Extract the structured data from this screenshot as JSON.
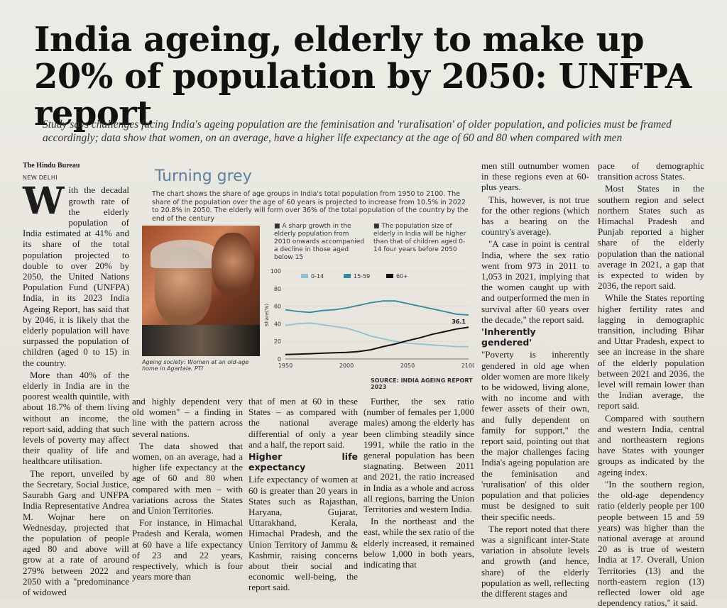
{
  "headline": "India ageing, elderly to make up 20% of population by 2050: UNFPA report",
  "deck": "Study says challenges facing India's ageing population are the feminisation and 'ruralisation' of older population, and policies must be framed accordingly; data show that women, on an average, have a higher life expectancy at the age of 60 and 80 when compared with men",
  "byline": "The Hindu Bureau",
  "dateline": "NEW DELHI",
  "col1": {
    "dropcap": "W",
    "p1": "ith the decadal growth rate of the elderly population of India estimated at 41% and its share of the total population projected to double to over 20% by 2050, the United Nations Population Fund (UNFPA) India, in its 2023 India Ageing Report, has said that by 2046, it is likely that the elderly population will have surpassed the population of children (aged 0 to 15) in the country.",
    "p2": "More than 40% of the elderly in India are in the poorest wealth quintile, with about 18.7% of them living without an income, the report said, adding that such levels of poverty may affect their quality of life and healthcare utilisation.",
    "p3": "The report, unveiled by the Secretary, Social Justice, Saurabh Garg and UNFPA India Representative Andrea M. Wojnar here on Wednesday, projected that the population of people aged 80 and above will grow at a rate of around 279% between 2022 and 2050 with a \"predominance of widowed"
  },
  "col2": {
    "p1": "and highly dependent very old women\" – a finding in line with the pattern across several nations.",
    "p2": "The data showed that women, on an average, had a higher life expectancy at the age of 60 and 80 when compared with men – with variations across the States and Union Territories.",
    "p3": "For instance, in Himachal Pradesh and Kerala, women at 60 have a life expectancy of 23 and 22 years, respectively, which is four years more than"
  },
  "col3": {
    "p1": "that of men at 60 in these States – as compared with the national average differential of only a year and a half, the report said.",
    "subhead": "Higher life expectancy",
    "p2": "Life expectancy of women at 60 is greater than 20 years in States such as Rajasthan, Haryana, Gujarat, Uttarakhand, Kerala, Himachal Pradesh, and the Union Territory of Jammu & Kashmir, raising concerns about their social and economic well-being, the report said."
  },
  "col4": {
    "p1": "Further, the sex ratio (number of females per 1,000 males) among the elderly has been climbing steadily since 1991, while the ratio in the general population has been stagnating. Between 2011 and 2021, the ratio increased in India as a whole and across all regions, barring the Union Territories and western India.",
    "p2": "In the northeast and the east, while the sex ratio of the elderly increased, it remained below 1,000 in both years, indicating that"
  },
  "col5": {
    "p1": "men still outnumber women in these regions even at 60-plus years.",
    "p2": "This, however, is not true for the other regions (which has a bearing on the country's average).",
    "p3": "\"A case in point is central India, where the sex ratio went from 973 in 2011 to 1,053 in 2021, implying that the women caught up with and outperformed the men in survival after 60 years over the decade,\" the report said.",
    "subhead": "'Inherently gendered'",
    "p4": "\"Poverty is inherently gendered in old age when older women are more likely to be widowed, living alone, with no income and with fewer assets of their own, and fully dependent on family for support,\" the report said, pointing out that the major challenges facing India's ageing population are the feminisation and 'ruralisation' of this older population and that policies must be designed to suit their specific needs.",
    "p5": "The report noted that there was a significant inter-State variation in absolute levels and growth (and hence, share) of the elderly population as well, reflecting the different stages and"
  },
  "col6": {
    "p1": "pace of demographic transition across States.",
    "p2": "Most States in the southern region and select northern States such as Himachal Pradesh and Punjab reported a higher share of the elderly population than the national average in 2021, a gap that is expected to widen by 2036, the report said.",
    "p3": "While the States reporting higher fertility rates and lagging in demographic transition, including Bihar and Uttar Pradesh, expect to see an increase in the share of the elderly population between 2021 and 2036, the level will remain lower than the Indian average, the report said.",
    "p4": "Compared with southern and western India, central and northeastern regions have States with younger groups as indicated by the ageing index.",
    "p5": "\"In the southern region, the old-age dependency ratio (elderly people per 100 people between 15 and 59 years) was higher than the national average at around 20 as is true of western India at 17. Overall, Union Territories (13) and the north-eastern region (13) reflected lower old age dependency ratios,\" it said."
  },
  "graphic": {
    "title": "Turning grey",
    "description": "The chart shows the share of age groups in India's total population from 1950 to 2100. The share of the population over the age of 60 years is projected to increase from 10.5% in 2022 to 20.8% in 2050. The elderly will form over 36% of the total population of the country by the end of the century",
    "note1": "A sharp growth in the elderly population from 2010 onwards accompanied a decline in those aged below 15",
    "note2": "The population size of elderly in India will be higher than that of children aged 0-14 four years before 2050",
    "caption": "Ageing society: Women at an old-age home in Agartala. PTI",
    "source": "SOURCE: INDIA AGEING REPORT 2023"
  },
  "chart_data": {
    "type": "line",
    "title": "Turning grey",
    "xlabel": "",
    "ylabel": "Share(%)",
    "xlim": [
      1950,
      2100
    ],
    "ylim": [
      0,
      100
    ],
    "x_ticks": [
      1950,
      2000,
      2050,
      2100
    ],
    "y_ticks": [
      0,
      20,
      40,
      60,
      80,
      100
    ],
    "legend_position": "top",
    "annotation": "36.1",
    "x": [
      1950,
      1960,
      1970,
      1980,
      1990,
      2000,
      2010,
      2020,
      2030,
      2040,
      2050,
      2060,
      2070,
      2080,
      2090,
      2100
    ],
    "series": [
      {
        "name": "0-14",
        "color": "#8fc0d6",
        "values": [
          38,
          40,
          41,
          39,
          37,
          35,
          31,
          26,
          23,
          20,
          18,
          17,
          16,
          15,
          14,
          14
        ]
      },
      {
        "name": "15-59",
        "color": "#2f8a9a",
        "values": [
          56,
          54,
          53,
          55,
          56,
          58,
          61,
          64,
          66,
          66,
          63,
          60,
          57,
          54,
          51,
          50
        ]
      },
      {
        "name": "60+",
        "color": "#111111",
        "values": [
          5,
          5.5,
          6,
          6.5,
          7,
          7.5,
          8.5,
          10.5,
          14,
          17,
          20.8,
          24,
          28,
          31,
          34,
          36.1
        ]
      }
    ]
  }
}
